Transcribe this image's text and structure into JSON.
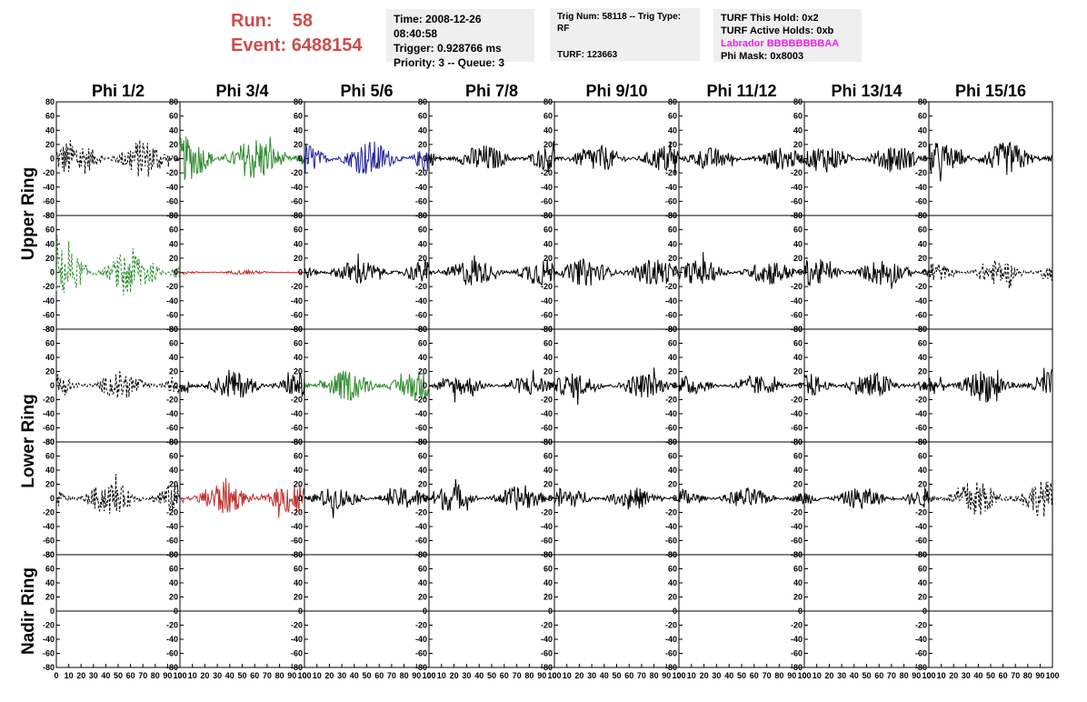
{
  "header": {
    "run_label": "Run:",
    "run_value": "58",
    "event_label": "Event:",
    "event_value": "6488154",
    "time": "Time: 2008-12-26 08:40:58",
    "trigger": "Trigger: 0.928766 ms",
    "priority": "Priority: 3 -- Queue: 3",
    "trig_num": "Trig Num: 58118 -- Trig Type: RF",
    "turf": "TURF: 123663",
    "turf_this_hold": "TURF This Hold: 0x2",
    "turf_active_holds": "TURF Active Holds: 0xb",
    "labrador": "Labrador BBBBBBBBAA",
    "phi_mask": "Phi Mask: 0x8003"
  },
  "chart_data": {
    "type": "line",
    "columns": [
      "Phi 1/2",
      "Phi 3/4",
      "Phi 5/6",
      "Phi 7/8",
      "Phi 9/10",
      "Phi 11/12",
      "Phi 13/14",
      "Phi 15/16"
    ],
    "rows": [
      "Upper Ring",
      "Lower Ring",
      "Nadir Ring"
    ],
    "ylim": [
      -80,
      80
    ],
    "y_ticks": [
      -80,
      -60,
      -40,
      -20,
      0,
      20,
      40,
      60,
      80
    ],
    "xlim": [
      0,
      100
    ],
    "x_ticks": [
      0,
      10,
      20,
      30,
      40,
      50,
      60,
      70,
      80,
      90,
      100
    ],
    "colors": {
      "black": "#000000",
      "green": "#2e8b2e",
      "blue": "#22229a",
      "red": "#c03030"
    },
    "panels": [
      [
        {
          "color": "black",
          "dashed": true,
          "amp": 28
        },
        {
          "color": "green",
          "dashed": false,
          "amp": 32
        },
        {
          "color": "blue",
          "dashed": false,
          "amp": 26
        },
        {
          "color": "black",
          "dashed": false,
          "amp": 20
        },
        {
          "color": "black",
          "dashed": false,
          "amp": 20
        },
        {
          "color": "black",
          "dashed": false,
          "amp": 16
        },
        {
          "color": "black",
          "dashed": false,
          "amp": 20
        },
        {
          "color": "black",
          "dashed": false,
          "amp": 24
        }
      ],
      [
        {
          "color": "green",
          "dashed": true,
          "amp": 34
        },
        {
          "color": "red",
          "dashed": false,
          "amp": 3
        },
        {
          "color": "black",
          "dashed": false,
          "amp": 18
        },
        {
          "color": "black",
          "dashed": false,
          "amp": 20
        },
        {
          "color": "black",
          "dashed": false,
          "amp": 20
        },
        {
          "color": "black",
          "dashed": false,
          "amp": 18
        },
        {
          "color": "black",
          "dashed": false,
          "amp": 20
        },
        {
          "color": "black",
          "dashed": true,
          "amp": 18
        }
      ],
      [
        {
          "color": "black",
          "dashed": true,
          "amp": 20
        },
        {
          "color": "black",
          "dashed": false,
          "amp": 20
        },
        {
          "color": "green",
          "dashed": false,
          "amp": 22
        },
        {
          "color": "black",
          "dashed": false,
          "amp": 15
        },
        {
          "color": "black",
          "dashed": false,
          "amp": 18
        },
        {
          "color": "black",
          "dashed": false,
          "amp": 14
        },
        {
          "color": "black",
          "dashed": false,
          "amp": 20
        },
        {
          "color": "black",
          "dashed": false,
          "amp": 24
        }
      ],
      [
        {
          "color": "black",
          "dashed": true,
          "amp": 24
        },
        {
          "color": "red",
          "dashed": false,
          "amp": 24
        },
        {
          "color": "black",
          "dashed": false,
          "amp": 16
        },
        {
          "color": "black",
          "dashed": false,
          "amp": 18
        },
        {
          "color": "black",
          "dashed": false,
          "amp": 16
        },
        {
          "color": "black",
          "dashed": false,
          "amp": 15
        },
        {
          "color": "black",
          "dashed": false,
          "amp": 16
        },
        {
          "color": "black",
          "dashed": true,
          "amp": 26
        }
      ],
      [
        {
          "color": "black",
          "flat": true
        },
        {
          "color": "black",
          "flat": true
        },
        {
          "color": "black",
          "flat": true
        },
        {
          "color": "black",
          "flat": true
        },
        {
          "color": "black",
          "flat": true
        },
        {
          "color": "black",
          "flat": true
        },
        {
          "color": "black",
          "flat": true
        },
        {
          "color": "black",
          "flat": true
        }
      ]
    ]
  }
}
